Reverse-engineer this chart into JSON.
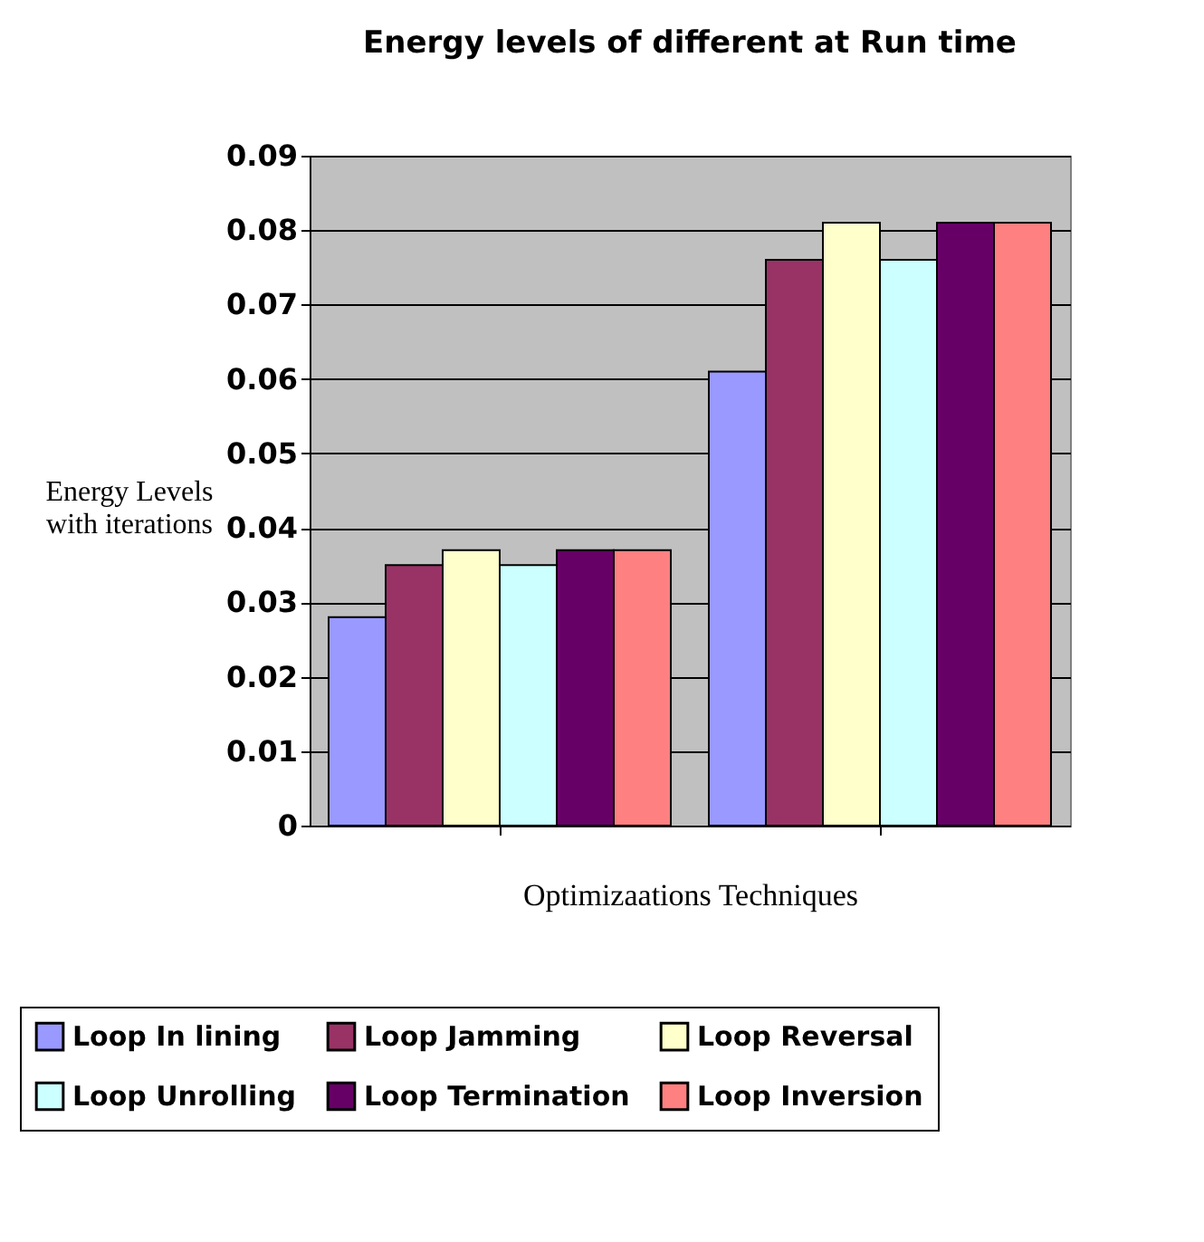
{
  "chart_data": {
    "type": "bar",
    "title": "Energy levels of different at Run time",
    "xlabel": "Optimizaations Techniques",
    "ylabel": "Energy Levels with iterations",
    "categories": [
      null,
      null
    ],
    "series": [
      {
        "name": "Loop In lining",
        "color": "#9999ff",
        "values": [
          0.028,
          0.061
        ]
      },
      {
        "name": "Loop Jamming",
        "color": "#993366",
        "values": [
          0.035,
          0.076
        ]
      },
      {
        "name": "Loop Reversal",
        "color": "#ffffcc",
        "values": [
          0.037,
          0.081
        ]
      },
      {
        "name": "Loop Unrolling",
        "color": "#ccffff",
        "values": [
          0.035,
          0.076
        ]
      },
      {
        "name": "Loop Termination",
        "color": "#660066",
        "values": [
          0.037,
          0.081
        ]
      },
      {
        "name": "Loop Inversion",
        "color": "#ff8080",
        "values": [
          0.037,
          0.081
        ]
      }
    ],
    "ylim": [
      0,
      0.09
    ],
    "yticks": [
      0,
      0.01,
      0.02,
      0.03,
      0.04,
      0.05,
      0.06,
      0.07,
      0.08,
      0.09
    ],
    "grid": "y",
    "legend": "bottom",
    "tick_labels": "y"
  }
}
